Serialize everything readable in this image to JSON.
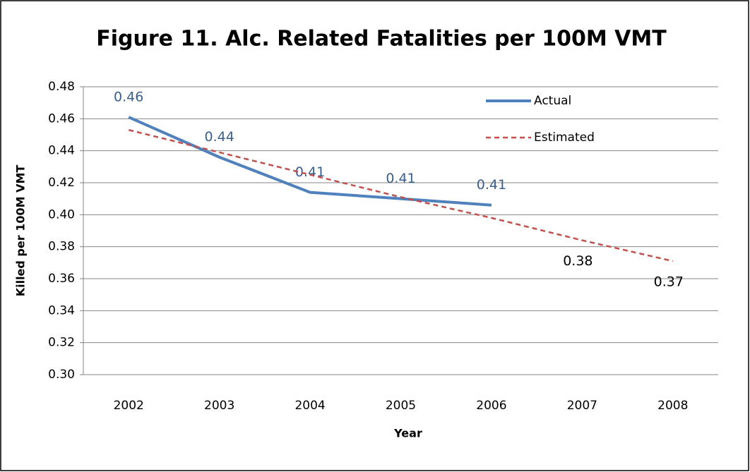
{
  "chart_data": {
    "type": "line",
    "title": "Figure 11. Alc. Related Fatalities per 100M VMT",
    "x_label": "Year",
    "y_label": "Killed per 100M VMT",
    "categories": [
      "2002",
      "2003",
      "2004",
      "2005",
      "2006",
      "2007",
      "2008"
    ],
    "series": [
      {
        "name": "Actual",
        "color": "#4f81bd",
        "line_style": "solid",
        "label_color": "#3a5f8c",
        "values": [
          0.461,
          0.436,
          0.414,
          0.41,
          0.406,
          null,
          null
        ],
        "value_labels": [
          "0.46",
          "0.44",
          "0.41",
          "0.41",
          "0.41",
          null,
          null
        ]
      },
      {
        "name": "Estimated",
        "color": "#c0504d",
        "line_style": "dashed",
        "label_color": "#000000",
        "values": [
          0.453,
          0.439,
          0.425,
          0.411,
          0.398,
          0.384,
          0.371
        ],
        "value_labels": [
          null,
          null,
          null,
          null,
          null,
          "0.38",
          "0.37"
        ]
      }
    ],
    "ylim": [
      0.3,
      0.48
    ],
    "yticks": [
      {
        "value": 0.3,
        "label": "0.30"
      },
      0.32,
      0.34,
      0.36,
      0.38,
      {
        "value": 0.4,
        "label": "0.40"
      },
      0.42,
      0.44,
      0.46,
      0.48
    ],
    "grid": true,
    "legend": "top-right"
  }
}
